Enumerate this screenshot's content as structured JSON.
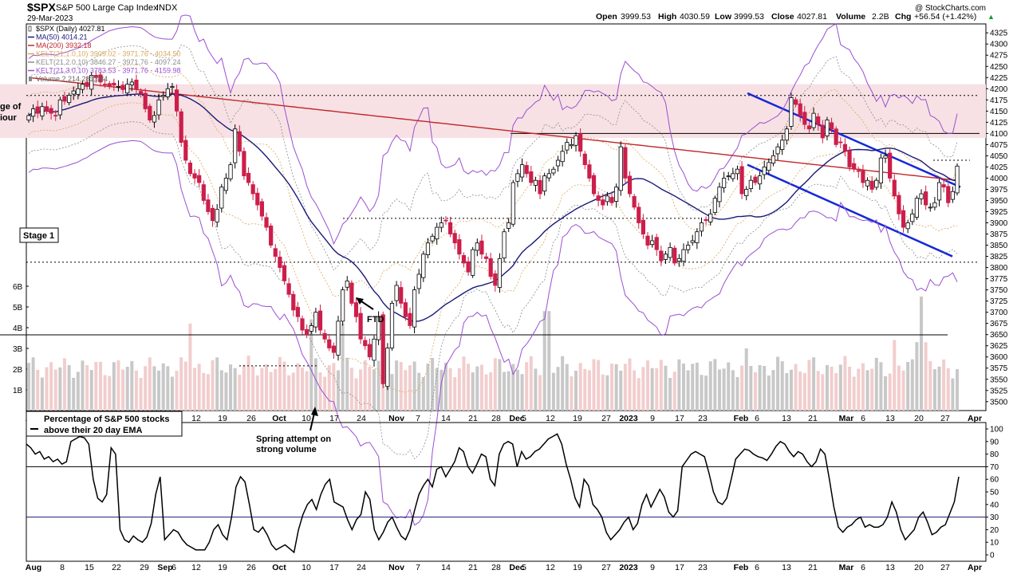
{
  "header": {
    "symbol": "$SPX",
    "name": "S&P 500 Large Cap Index",
    "exchange": "INDX",
    "date": "29-Mar-2023",
    "copyright": "@ StockCharts.com",
    "open_label": "Open",
    "open": "3999.53",
    "high_label": "High",
    "high": "4030.59",
    "low_label": "Low",
    "low": "3999.53",
    "close_label": "Close",
    "close": "4027.81",
    "volume_label": "Volume",
    "volume": "2.2B",
    "chg_label": "Chg",
    "chg": "+56.54 (+1.42%)",
    "up_arrow": "▲"
  },
  "legend": [
    {
      "text": "$SPX (Daily) 4027.81",
      "color": "#000000",
      "marker": "candle"
    },
    {
      "text": "MA(50) 4014.21",
      "color": "#1a1a7a",
      "marker": "line"
    },
    {
      "text": "MA(200) 3932.18",
      "color": "#c0282d",
      "marker": "line"
    },
    {
      "text": "KELT(21,1.0,10) 3909.02 - 3971.76 - 4034.50",
      "color": "#d9a85a",
      "marker": "line"
    },
    {
      "text": "KELT(21,2.0,10) 3846.27 - 3971.76 - 4097.24",
      "color": "#8c8c8c",
      "marker": "line"
    },
    {
      "text": "KELT(21,3.0,10) 3783.53 - 3971.76 - 4159.98",
      "color": "#9b4fd1",
      "marker": "line"
    },
    {
      "text": "Volume 2,214,281,984",
      "color": "#666666",
      "marker": "bar"
    }
  ],
  "annotations": {
    "range_partial": "ge of",
    "range_partial_2": "iour",
    "stage": "Stage 1",
    "ftd": "FTD",
    "spring_1": "Spring attempt on",
    "spring_2": "strong volume"
  },
  "indicator": {
    "title_1": "Percentage of S&P 500 stocks",
    "title_2": "above their 20 day EMA"
  },
  "colors": {
    "up_candle": "#ffffff",
    "down_candle": "#cc1e4a",
    "candle_outline": "#000000",
    "ma50": "#1a1a7a",
    "ma200": "#c0282d",
    "kelt1": "#d9a85a",
    "kelt2": "#8c8c8c",
    "kelt3": "#9b4fd1",
    "channel": "#1428d8",
    "resistance_zone": "#f7e1e4",
    "volume_up": "#c8c8c8",
    "volume_down": "#f2cdcd"
  },
  "chart_data": [
    {
      "type": "candlestick",
      "title": "$SPX S&P 500 Large Cap Index INDX",
      "ylim": [
        3480,
        4345
      ],
      "y_ticks": [
        3500,
        3525,
        3550,
        3575,
        3600,
        3625,
        3650,
        3675,
        3700,
        3725,
        3750,
        3775,
        3800,
        3825,
        3850,
        3875,
        3900,
        3925,
        3950,
        3975,
        4000,
        4025,
        4050,
        4075,
        4100,
        4125,
        4150,
        4175,
        4200,
        4225,
        4250,
        4275,
        4300,
        4325
      ],
      "volume_ticks": [
        "1B",
        "2B",
        "3B",
        "4B",
        "5B",
        "6B"
      ],
      "volume_tick_values": [
        1,
        2,
        3,
        4,
        5,
        6
      ],
      "x_tick_labels": [
        "Aug",
        "8",
        "15",
        "22",
        "29",
        "Sep",
        "6",
        "12",
        "19",
        "26",
        "Oct",
        "10",
        "17",
        "24",
        "Nov",
        "7",
        "14",
        "21",
        "28",
        "Dec",
        "5",
        "12",
        "19",
        "27",
        "2023",
        "9",
        "17",
        "23",
        "Feb",
        "6",
        "13",
        "21",
        "Mar",
        "6",
        "13",
        "20",
        "27",
        "Apr"
      ],
      "closes": [
        4140,
        4155,
        4145,
        4160,
        4150,
        4145,
        4140,
        4175,
        4172,
        4185,
        4195,
        4200,
        4210,
        4205,
        4230,
        4225,
        4215,
        4210,
        4205,
        4208,
        4205,
        4198,
        4210,
        4215,
        4200,
        4190,
        4155,
        4130,
        4140,
        4175,
        4185,
        4200,
        4205,
        4150,
        4080,
        4040,
        4010,
        4000,
        3990,
        3950,
        3925,
        3905,
        3930,
        3980,
        4000,
        4030,
        4110,
        4060,
        4005,
        3990,
        3965,
        3940,
        3915,
        3890,
        3850,
        3825,
        3800,
        3770,
        3740,
        3705,
        3690,
        3660,
        3650,
        3670,
        3700,
        3660,
        3640,
        3620,
        3610,
        3680,
        3750,
        3770,
        3720,
        3690,
        3640,
        3625,
        3600,
        3640,
        3690,
        3540,
        3620,
        3720,
        3760,
        3720,
        3690,
        3670,
        3750,
        3785,
        3830,
        3855,
        3870,
        3890,
        3900,
        3905,
        3875,
        3855,
        3830,
        3810,
        3790,
        3840,
        3855,
        3830,
        3820,
        3780,
        3760,
        3820,
        3880,
        3900,
        3990,
        4010,
        4030,
        4010,
        3990,
        3995,
        3965,
        4005,
        4010,
        4020,
        4040,
        4060,
        4080,
        4075,
        4095,
        4060,
        4030,
        4000,
        3965,
        3950,
        3940,
        3960,
        3945,
        3980,
        4070,
        4000,
        3965,
        3935,
        3900,
        3875,
        3850,
        3860,
        3840,
        3815,
        3830,
        3845,
        3810,
        3820,
        3840,
        3850,
        3860,
        3880,
        3900,
        3905,
        3920,
        3955,
        3980,
        4000,
        4005,
        4010,
        4020,
        3965,
        3975,
        3995,
        3990,
        4005,
        4025,
        4035,
        4050,
        4070,
        4085,
        4110,
        4180,
        4165,
        4140,
        4120,
        4110,
        4145,
        4120,
        4090,
        4130,
        4110,
        4075,
        4080,
        4060,
        4025,
        4020,
        4015,
        3990,
        3995,
        3975,
        3995,
        4045,
        4050,
        4000,
        3960,
        3920,
        3890,
        3900,
        3920,
        3955,
        3965,
        3940,
        3935,
        3945,
        3990,
        3980,
        3945,
        3970,
        4027
      ],
      "ma50_end": 4014.21,
      "ma200_end": 3932.18,
      "kelt_1": [
        3909.02,
        3971.76,
        4034.5
      ],
      "kelt_2": [
        3846.27,
        3971.76,
        4097.24
      ],
      "kelt_3": [
        3783.53,
        3971.76,
        4159.98
      ],
      "volume_end": 2214281984
    },
    {
      "type": "line",
      "title": "Percentage of S&P 500 stocks above their 20 day EMA",
      "ylim": [
        0,
        100
      ],
      "y_ticks": [
        0,
        10,
        20,
        30,
        40,
        50,
        60,
        70,
        80,
        90,
        100
      ],
      "reference_lines": [
        30,
        70
      ],
      "x_tick_labels": [
        "Aug",
        "8",
        "15",
        "22",
        "29",
        "Sep",
        "6",
        "12",
        "19",
        "26",
        "Oct",
        "10",
        "17",
        "24",
        "Nov",
        "7",
        "14",
        "21",
        "28",
        "Dec",
        "5",
        "12",
        "19",
        "27",
        "2023",
        "9",
        "17",
        "23",
        "Feb",
        "6",
        "13",
        "21",
        "Mar",
        "6",
        "13",
        "20",
        "27",
        "Apr"
      ],
      "values": [
        88,
        85,
        80,
        82,
        76,
        78,
        74,
        76,
        72,
        74,
        90,
        92,
        94,
        93,
        88,
        60,
        45,
        42,
        48,
        85,
        80,
        20,
        12,
        10,
        15,
        12,
        10,
        14,
        25,
        48,
        62,
        12,
        16,
        20,
        18,
        12,
        8,
        6,
        4,
        4,
        4,
        10,
        20,
        24,
        16,
        12,
        30,
        54,
        62,
        58,
        40,
        20,
        18,
        22,
        16,
        8,
        4,
        6,
        8,
        5,
        2,
        20,
        32,
        40,
        44,
        36,
        48,
        56,
        60,
        42,
        40,
        38,
        28,
        20,
        28,
        32,
        50,
        44,
        20,
        12,
        18,
        26,
        30,
        22,
        15,
        12,
        20,
        35,
        48,
        55,
        60,
        54,
        68,
        70,
        62,
        68,
        74,
        85,
        82,
        70,
        65,
        72,
        80,
        78,
        60,
        55,
        80,
        88,
        90,
        88,
        70,
        82,
        76,
        78,
        82,
        84,
        88,
        92,
        94,
        96,
        88,
        72,
        60,
        45,
        38,
        60,
        55,
        40,
        36,
        30,
        18,
        12,
        16,
        20,
        26,
        30,
        20,
        25,
        40,
        48,
        38,
        45,
        52,
        46,
        34,
        30,
        35,
        70,
        75,
        80,
        82,
        80,
        78,
        65,
        50,
        42,
        40,
        45,
        60,
        76,
        80,
        84,
        83,
        80,
        78,
        77,
        75,
        80,
        86,
        90,
        88,
        82,
        78,
        82,
        80,
        74,
        70,
        74,
        84,
        80,
        60,
        38,
        22,
        18,
        22,
        24,
        28,
        30,
        22,
        24,
        22,
        22,
        24,
        30,
        42,
        34,
        20,
        12,
        16,
        20,
        30,
        34,
        26,
        16,
        18,
        22,
        24,
        33,
        42,
        62
      ]
    }
  ]
}
